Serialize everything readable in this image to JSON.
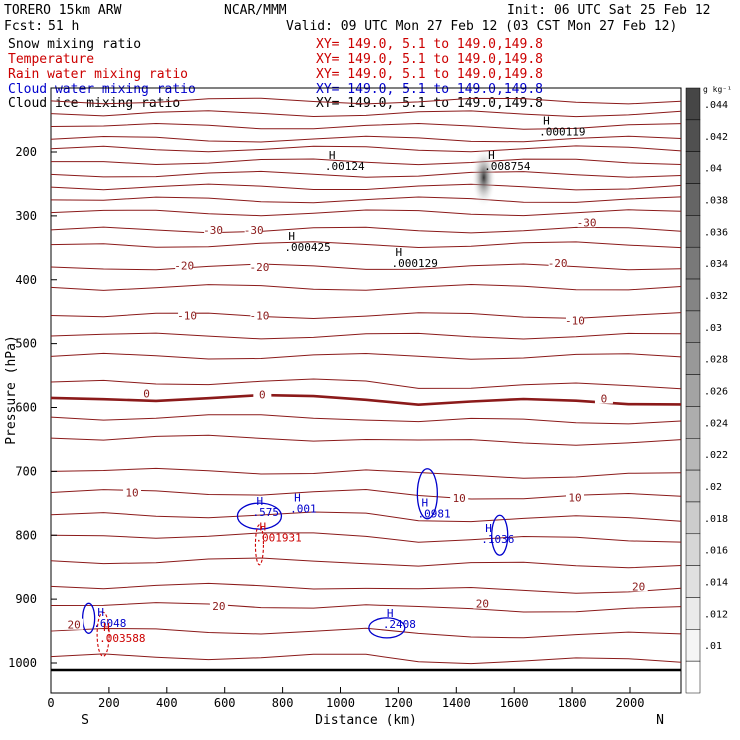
{
  "header": {
    "model": "TORERO  15km ARW",
    "center": "NCAR/MMM",
    "init": "Init: 06 UTC Sat 25 Feb 12",
    "fcst_label": "Fcst:",
    "fcst_value": "51 h",
    "valid": "Valid: 09 UTC Mon 27 Feb 12 (03 CST Mon 27 Feb 12)"
  },
  "legend": [
    {
      "name": "Snow mixing ratio",
      "range": "",
      "color": "#000000"
    },
    {
      "name": "Temperature",
      "range": "XY= 149.0,  5.1 to 149.0,149.8",
      "color": "#cc0000"
    },
    {
      "name": "Rain water mixing ratio",
      "range": "XY= 149.0,  5.1 to 149.0,149.8",
      "color": "#cc0000"
    },
    {
      "name": "Cloud water mixing ratio",
      "range": "XY= 149.0,  5.1 to 149.0,149.8",
      "color": "#0000cc"
    },
    {
      "name": "Cloud ice mixing ratio",
      "range": "XY= 149.0,  5.1 to 149.0,149.8",
      "color": "#000000"
    }
  ],
  "legend_range_0": "XY= 149.0,  5.1 to 149.0,149.8",
  "colors": {
    "temperature": "#8b1a1a",
    "cloud_water": "#0000cc",
    "rain_water": "#cc0000",
    "axis": "#000000"
  },
  "colorbar": {
    "unit": "g kg⁻¹",
    "ticks": [
      ".044",
      ".042",
      ".04",
      ".038",
      ".036",
      ".034",
      ".032",
      ".03",
      ".028",
      ".026",
      ".024",
      ".022",
      ".02",
      ".018",
      ".016",
      ".014",
      ".012",
      ".01"
    ]
  },
  "chart_data": {
    "type": "cross-section",
    "xlabel": "Distance (km)",
    "ylabel": "Pressure (hPa)",
    "xlim": [
      0,
      2180
    ],
    "ylim": [
      1050,
      100
    ],
    "x_ticks": [
      0,
      200,
      400,
      600,
      800,
      1000,
      1200,
      1400,
      1600,
      1800,
      2000
    ],
    "y_ticks": [
      200,
      300,
      400,
      500,
      600,
      700,
      800,
      900,
      1000
    ],
    "x_end_labels": {
      "left": "S",
      "right": "N"
    },
    "temperature_contour_labels": [
      {
        "text": "-30",
        "x": 560,
        "p": 322
      },
      {
        "text": "-30",
        "x": 700,
        "p": 322
      },
      {
        "text": "-30",
        "x": 1850,
        "p": 310
      },
      {
        "text": "-20",
        "x": 460,
        "p": 378
      },
      {
        "text": "-20",
        "x": 720,
        "p": 380
      },
      {
        "text": "-20",
        "x": 1750,
        "p": 374
      },
      {
        "text": "-10",
        "x": 470,
        "p": 456
      },
      {
        "text": "-10",
        "x": 720,
        "p": 456
      },
      {
        "text": "-10",
        "x": 1810,
        "p": 464
      },
      {
        "text": "0",
        "x": 330,
        "p": 578
      },
      {
        "text": "0",
        "x": 730,
        "p": 580
      },
      {
        "text": "0",
        "x": 1910,
        "p": 586
      },
      {
        "text": "10",
        "x": 280,
        "p": 733
      },
      {
        "text": "10",
        "x": 1410,
        "p": 742
      },
      {
        "text": "10",
        "x": 1810,
        "p": 741
      },
      {
        "text": "20",
        "x": 80,
        "p": 940
      },
      {
        "text": "20",
        "x": 580,
        "p": 911
      },
      {
        "text": "20",
        "x": 1490,
        "p": 907
      },
      {
        "text": "20",
        "x": 2030,
        "p": 880
      }
    ],
    "maxima": [
      {
        "field": "snow",
        "text": ".000119",
        "x": 1700,
        "p": 174
      },
      {
        "field": "snow",
        "text": ".00124",
        "x": 960,
        "p": 228
      },
      {
        "field": "cloud_ice",
        "text": ".008754",
        "x": 1510,
        "p": 228
      },
      {
        "field": "snow",
        "text": ".000425",
        "x": 820,
        "p": 355
      },
      {
        "field": "snow",
        "text": ".000129",
        "x": 1190,
        "p": 380
      },
      {
        "field": "cloud_water",
        "text": ".575",
        "x": 710,
        "p": 770
      },
      {
        "field": "cloud_water",
        "text": ".001",
        "x": 840,
        "p": 764
      },
      {
        "field": "rain",
        "text": ".001931",
        "x": 720,
        "p": 810
      },
      {
        "field": "cloud_water",
        "text": ".0981",
        "x": 1280,
        "p": 772
      },
      {
        "field": "cloud_water",
        "text": ".1036",
        "x": 1500,
        "p": 812
      },
      {
        "field": "cloud_water",
        "text": ".6048",
        "x": 160,
        "p": 944
      },
      {
        "field": "rain",
        "text": ".003588",
        "x": 180,
        "p": 967
      },
      {
        "field": "cloud_water",
        "text": ".2408",
        "x": 1160,
        "p": 945
      }
    ]
  }
}
